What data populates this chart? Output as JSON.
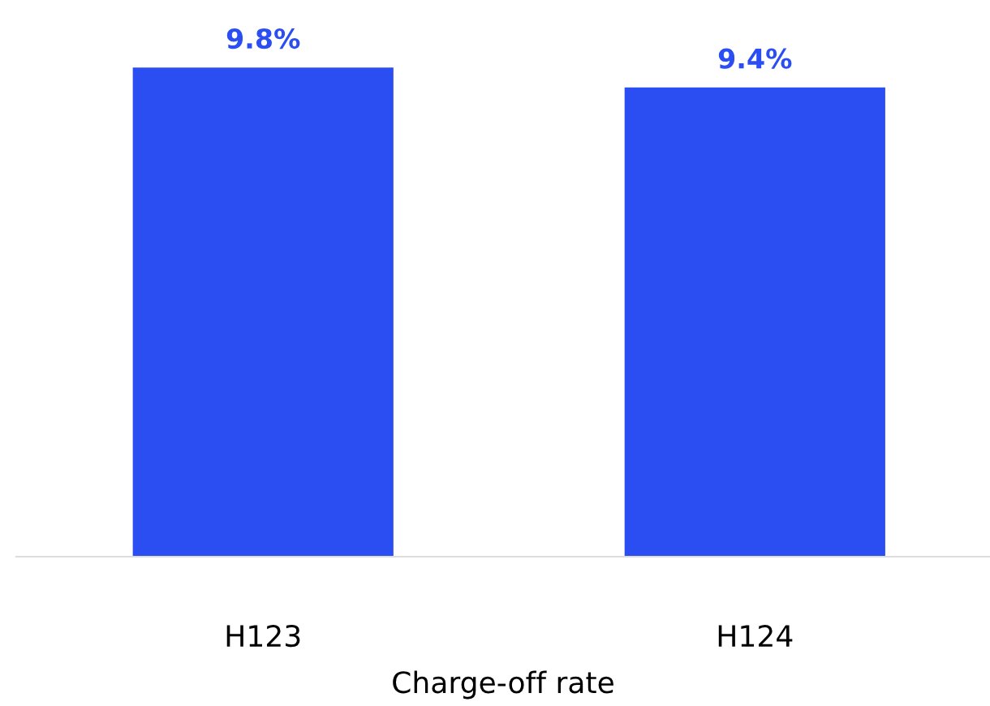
{
  "chart_data": {
    "type": "bar",
    "xlabel": "Charge-off rate",
    "categories": [
      "H123",
      "H124"
    ],
    "values": [
      9.8,
      9.4
    ],
    "value_labels": [
      "9.8%",
      "9.4%"
    ],
    "color": "#2b4ef2",
    "grid": false,
    "legend": false
  }
}
